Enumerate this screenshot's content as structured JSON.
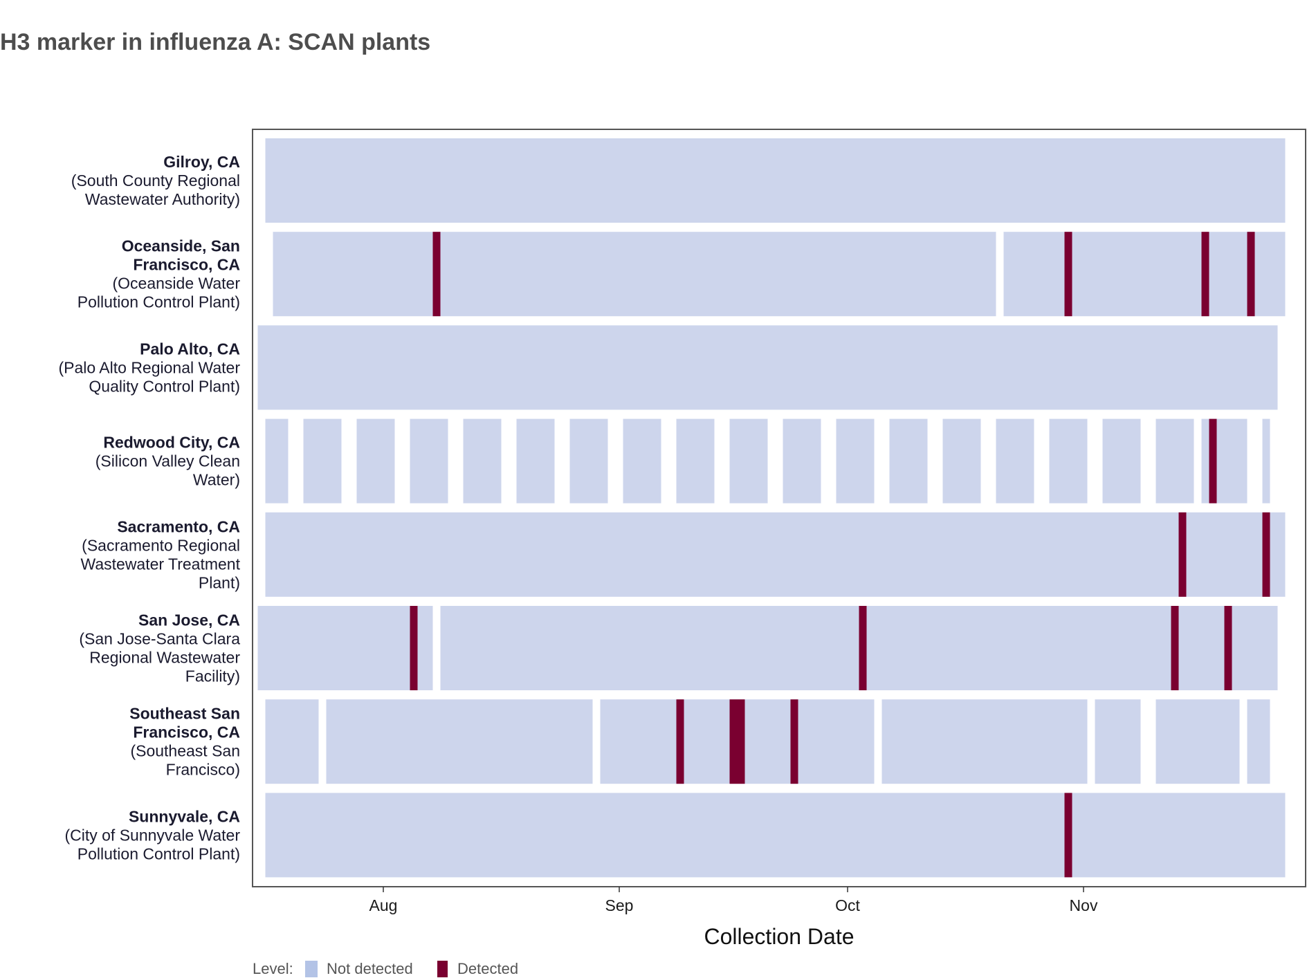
{
  "chart_data": {
    "type": "heatmap",
    "title": "H3 marker in influenza A: SCAN plants",
    "xlabel": "Collection Date",
    "ylabel": "",
    "x_ticks": [
      {
        "label": "Aug",
        "date": "2024-08-01"
      },
      {
        "label": "Sep",
        "date": "2024-09-01"
      },
      {
        "label": "Oct",
        "date": "2024-10-01"
      },
      {
        "label": "Nov",
        "date": "2024-11-01"
      }
    ],
    "xlim": [
      "2024-07-16",
      "2024-11-29"
    ],
    "legend": {
      "title": "Level:",
      "position": "bottom-left",
      "items": [
        {
          "label": "Not detected",
          "color": "#cdd5ec",
          "swatch": "#b3c3e6"
        },
        {
          "label": "Detected",
          "color": "#7a0030"
        }
      ]
    },
    "colors": {
      "not_detected": "#cdd5ec",
      "detected": "#7a0030",
      "panel_border": "#555555"
    },
    "rows": [
      {
        "name": "Gilroy, CA",
        "facility": "(South County Regional Wastewater Authority)",
        "label_lines": [
          "Gilroy, CA",
          "(South County Regional",
          "Wastewater Authority)"
        ],
        "bold_lines": 1,
        "not_detected_ranges": [
          [
            "2024-07-17",
            "2024-11-27"
          ]
        ],
        "detected_dates": []
      },
      {
        "name": "Oceanside, San Francisco, CA",
        "facility": "(Oceanside Water Pollution Control Plant)",
        "label_lines": [
          "Oceanside, San",
          "Francisco, CA",
          "(Oceanside Water",
          "Pollution Control Plant)"
        ],
        "bold_lines": 2,
        "not_detected_ranges": [
          [
            "2024-07-18",
            "2024-08-06"
          ],
          [
            "2024-08-07",
            "2024-10-19"
          ],
          [
            "2024-10-20",
            "2024-10-20"
          ],
          [
            "2024-10-22",
            "2024-11-27"
          ]
        ],
        "detected_dates": [
          "2024-08-08",
          "2024-10-30",
          "2024-11-17",
          "2024-11-23"
        ]
      },
      {
        "name": "Palo Alto, CA",
        "facility": "(Palo Alto Regional Water Quality Control Plant)",
        "label_lines": [
          "Palo Alto, CA",
          "(Palo Alto Regional Water",
          "Quality Control Plant)"
        ],
        "bold_lines": 1,
        "not_detected_ranges": [
          [
            "2024-07-16",
            "2024-11-26"
          ]
        ],
        "detected_dates": []
      },
      {
        "name": "Redwood City, CA",
        "facility": "(Silicon Valley Clean Water)",
        "label_lines": [
          "Redwood City, CA",
          "(Silicon Valley Clean",
          "Water)"
        ],
        "bold_lines": 1,
        "not_detected_ranges": [
          [
            "2024-07-17",
            "2024-07-19"
          ],
          [
            "2024-07-22",
            "2024-07-26"
          ],
          [
            "2024-07-29",
            "2024-08-02"
          ],
          [
            "2024-08-05",
            "2024-08-09"
          ],
          [
            "2024-08-12",
            "2024-08-16"
          ],
          [
            "2024-08-19",
            "2024-08-23"
          ],
          [
            "2024-08-26",
            "2024-08-30"
          ],
          [
            "2024-09-02",
            "2024-09-06"
          ],
          [
            "2024-09-09",
            "2024-09-13"
          ],
          [
            "2024-09-16",
            "2024-09-20"
          ],
          [
            "2024-09-23",
            "2024-09-27"
          ],
          [
            "2024-09-30",
            "2024-10-04"
          ],
          [
            "2024-10-07",
            "2024-10-11"
          ],
          [
            "2024-10-14",
            "2024-10-18"
          ],
          [
            "2024-10-21",
            "2024-10-25"
          ],
          [
            "2024-10-28",
            "2024-11-01"
          ],
          [
            "2024-11-04",
            "2024-11-08"
          ],
          [
            "2024-11-11",
            "2024-11-15"
          ],
          [
            "2024-11-17",
            "2024-11-22"
          ],
          [
            "2024-11-25",
            "2024-11-25"
          ]
        ],
        "detected_dates": [
          "2024-11-18"
        ]
      },
      {
        "name": "Sacramento, CA",
        "facility": "(Sacramento Regional Wastewater Treatment Plant)",
        "label_lines": [
          "Sacramento, CA",
          "(Sacramento Regional",
          "Wastewater Treatment",
          "Plant)"
        ],
        "bold_lines": 1,
        "not_detected_ranges": [
          [
            "2024-07-17",
            "2024-11-27"
          ]
        ],
        "detected_dates": [
          "2024-11-14",
          "2024-11-25"
        ]
      },
      {
        "name": "San Jose, CA",
        "facility": "(San Jose-Santa Clara Regional Wastewater Facility)",
        "label_lines": [
          "San Jose, CA",
          "(San Jose-Santa Clara",
          "Regional Wastewater",
          "Facility)"
        ],
        "bold_lines": 1,
        "not_detected_ranges": [
          [
            "2024-07-16",
            "2024-08-07"
          ],
          [
            "2024-08-09",
            "2024-11-26"
          ]
        ],
        "detected_dates": [
          "2024-08-05",
          "2024-10-03",
          "2024-11-13",
          "2024-11-20"
        ]
      },
      {
        "name": "Southeast San Francisco, CA",
        "facility": "(Southeast San Francisco)",
        "label_lines": [
          "Southeast San",
          "Francisco, CA",
          "(Southeast San",
          "Francisco)"
        ],
        "bold_lines": 2,
        "not_detected_ranges": [
          [
            "2024-07-17",
            "2024-07-23"
          ],
          [
            "2024-07-25",
            "2024-08-28"
          ],
          [
            "2024-08-30",
            "2024-10-04"
          ],
          [
            "2024-10-06",
            "2024-11-01"
          ],
          [
            "2024-11-03",
            "2024-11-08"
          ],
          [
            "2024-11-11",
            "2024-11-21"
          ],
          [
            "2024-11-23",
            "2024-11-25"
          ]
        ],
        "detected_dates": [
          "2024-09-09",
          "2024-09-16",
          "2024-09-17",
          "2024-09-24"
        ]
      },
      {
        "name": "Sunnyvale, CA",
        "facility": "(City of Sunnyvale Water Pollution Control Plant)",
        "label_lines": [
          "Sunnyvale, CA",
          "(City of Sunnyvale Water",
          "Pollution Control Plant)"
        ],
        "bold_lines": 1,
        "not_detected_ranges": [
          [
            "2024-07-17",
            "2024-11-27"
          ]
        ],
        "detected_dates": [
          "2024-10-30"
        ]
      }
    ]
  }
}
